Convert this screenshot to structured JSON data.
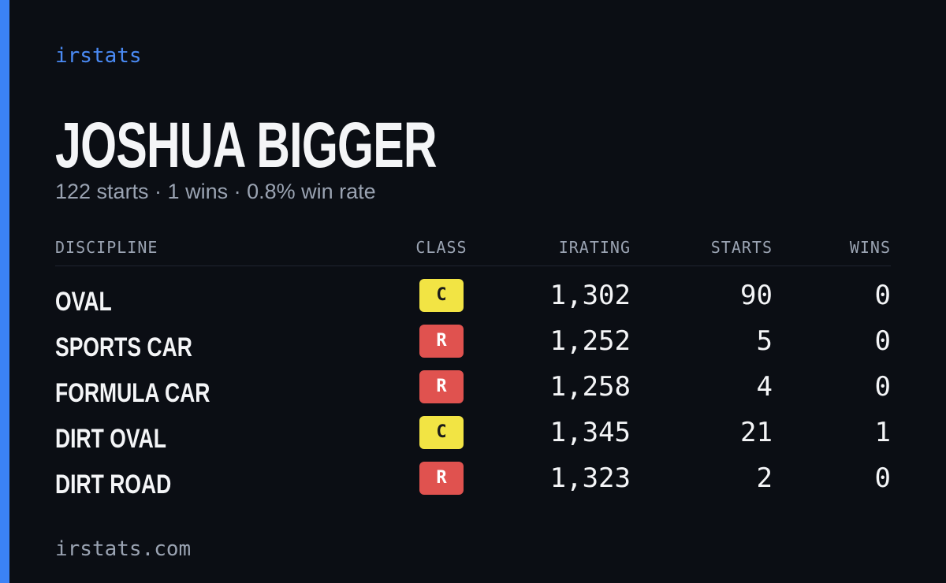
{
  "header": {
    "brand": "irstats",
    "name": "JOSHUA BIGGER",
    "summary": "122 starts · 1 wins · 0.8% win rate"
  },
  "table": {
    "columns": [
      "DISCIPLINE",
      "CLASS",
      "IRATING",
      "STARTS",
      "WINS"
    ],
    "rows": [
      {
        "discipline": "OVAL",
        "class": "C",
        "class_color": "#f2e444",
        "class_text_color": "#1a1a1a",
        "irating": "1,302",
        "starts": "90",
        "wins": "0"
      },
      {
        "discipline": "SPORTS CAR",
        "class": "R",
        "class_color": "#e0524f",
        "class_text_color": "#ffffff",
        "irating": "1,252",
        "starts": "5",
        "wins": "0"
      },
      {
        "discipline": "FORMULA CAR",
        "class": "R",
        "class_color": "#e0524f",
        "class_text_color": "#ffffff",
        "irating": "1,258",
        "starts": "4",
        "wins": "0"
      },
      {
        "discipline": "DIRT OVAL",
        "class": "C",
        "class_color": "#f2e444",
        "class_text_color": "#1a1a1a",
        "irating": "1,345",
        "starts": "21",
        "wins": "1"
      },
      {
        "discipline": "DIRT ROAD",
        "class": "R",
        "class_color": "#e0524f",
        "class_text_color": "#ffffff",
        "irating": "1,323",
        "starts": "2",
        "wins": "0"
      }
    ]
  },
  "footer": {
    "site": "irstats.com"
  }
}
